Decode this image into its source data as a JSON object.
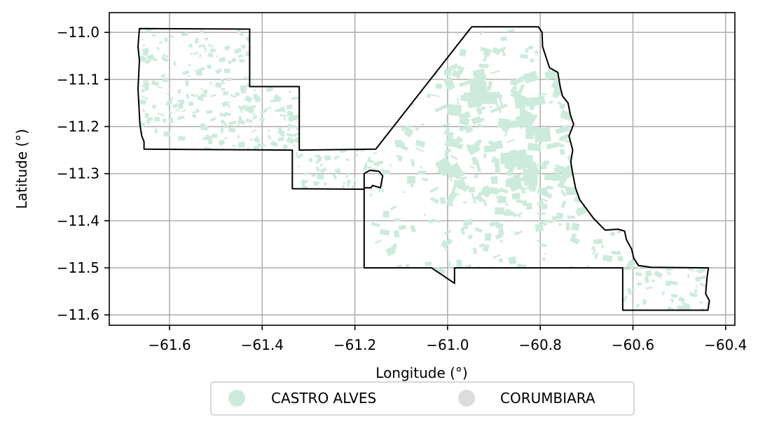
{
  "chart_data": {
    "type": "map",
    "xlabel": "Longitude (°)",
    "ylabel": "Latitude (°)",
    "xlim": [
      -61.73,
      -60.38
    ],
    "ylim": [
      -11.622,
      -10.958
    ],
    "x_ticks": [
      -61.6,
      -61.4,
      -61.2,
      -61.0,
      -60.8,
      -60.6,
      -60.4
    ],
    "y_ticks": [
      -11.0,
      -11.1,
      -11.2,
      -11.3,
      -11.4,
      -11.5,
      -11.6
    ],
    "x_tick_labels": [
      "−61.6",
      "−61.4",
      "−61.2",
      "−61.0",
      "−60.8",
      "−60.6",
      "−60.4"
    ],
    "y_tick_labels": [
      "−11.0",
      "−11.1",
      "−11.2",
      "−11.3",
      "−11.4",
      "−11.5",
      "−11.6"
    ],
    "grid": true,
    "legend_position": "bottom-center",
    "legend": [
      {
        "label": "CASTRO ALVES",
        "color": "#cdebdc"
      },
      {
        "label": "CORUMBIARA",
        "color": "#dcdcdc"
      }
    ],
    "boundary_color": "#000000",
    "boundary": [
      [
        -61.665,
        -10.992
      ],
      [
        -61.427,
        -10.993
      ],
      [
        -61.427,
        -11.115
      ],
      [
        -61.32,
        -11.115
      ],
      [
        -61.32,
        -11.25
      ],
      [
        -61.155,
        -11.248
      ],
      [
        -60.948,
        -10.988
      ],
      [
        -60.804,
        -10.988
      ],
      [
        -60.796,
        -11.0
      ],
      [
        -60.795,
        -11.03
      ],
      [
        -60.785,
        -11.06
      ],
      [
        -60.78,
        -11.075
      ],
      [
        -60.762,
        -11.085
      ],
      [
        -60.757,
        -11.115
      ],
      [
        -60.752,
        -11.135
      ],
      [
        -60.74,
        -11.15
      ],
      [
        -60.735,
        -11.175
      ],
      [
        -60.728,
        -11.195
      ],
      [
        -60.738,
        -11.22
      ],
      [
        -60.73,
        -11.25
      ],
      [
        -60.734,
        -11.275
      ],
      [
        -60.73,
        -11.3
      ],
      [
        -60.724,
        -11.33
      ],
      [
        -60.715,
        -11.355
      ],
      [
        -60.7,
        -11.375
      ],
      [
        -60.685,
        -11.395
      ],
      [
        -60.66,
        -11.42
      ],
      [
        -60.632,
        -11.418
      ],
      [
        -60.618,
        -11.422
      ],
      [
        -60.614,
        -11.44
      ],
      [
        -60.603,
        -11.46
      ],
      [
        -60.598,
        -11.48
      ],
      [
        -60.588,
        -11.495
      ],
      [
        -60.56,
        -11.499
      ],
      [
        -60.437,
        -11.5
      ],
      [
        -60.44,
        -11.52
      ],
      [
        -60.443,
        -11.555
      ],
      [
        -60.435,
        -11.57
      ],
      [
        -60.438,
        -11.59
      ],
      [
        -60.622,
        -11.59
      ],
      [
        -60.622,
        -11.5
      ],
      [
        -60.985,
        -11.5
      ],
      [
        -60.985,
        -11.533
      ],
      [
        -61.012,
        -11.515
      ],
      [
        -61.035,
        -11.5
      ],
      [
        -61.18,
        -11.5
      ],
      [
        -61.18,
        -11.33
      ],
      [
        -61.165,
        -11.33
      ],
      [
        -61.162,
        -11.325
      ],
      [
        -61.145,
        -11.33
      ],
      [
        -61.14,
        -11.305
      ],
      [
        -61.148,
        -11.295
      ],
      [
        -61.168,
        -11.293
      ],
      [
        -61.18,
        -11.3
      ],
      [
        -61.18,
        -11.333
      ],
      [
        -61.335,
        -11.332
      ],
      [
        -61.335,
        -11.25
      ],
      [
        -61.655,
        -11.248
      ],
      [
        -61.655,
        -11.232
      ],
      [
        -61.66,
        -11.22
      ],
      [
        -61.664,
        -11.195
      ],
      [
        -61.668,
        -11.12
      ],
      [
        -61.665,
        -11.06
      ],
      [
        -61.668,
        -11.03
      ]
    ]
  }
}
